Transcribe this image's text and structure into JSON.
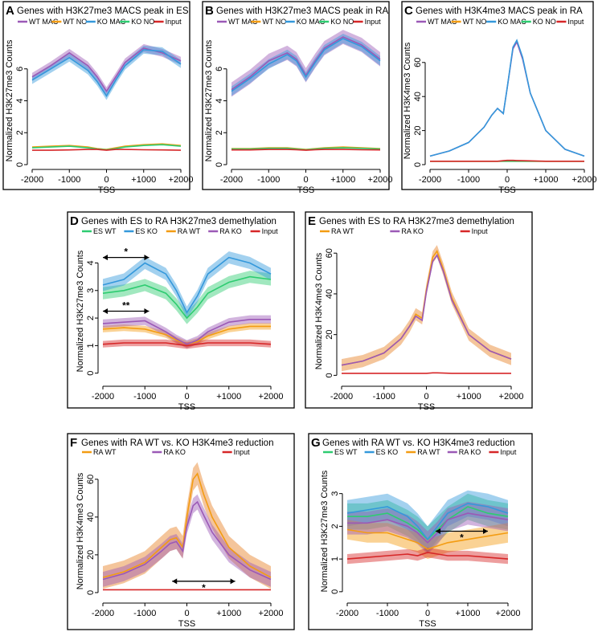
{
  "figure_title": "Multi-panel H3K27me3 / H3K4me3 TSS profiles",
  "colors": {
    "wt_mac": "#9b59b6",
    "wt_no": "#f39c12",
    "ko_mac": "#3498db",
    "ko_no": "#2ecc71",
    "input": "#d62728",
    "es_wt": "#2ecc71",
    "es_ko": "#3498db",
    "ra_wt": "#f39c12",
    "ra_ko": "#9b59b6",
    "orange_band": "#e67e22"
  },
  "chart_data": [
    {
      "id": "A",
      "type": "line",
      "title": "Genes with H3K27me3 MACS peak in ES",
      "xlabel": "TSS",
      "ylabel": "Normalized H3K27me3 Counts",
      "xlim": [
        -2000,
        2000
      ],
      "ylim": [
        0,
        8
      ],
      "xticks": [
        "-2000",
        "-1000",
        "0",
        "+1000",
        "+2000"
      ],
      "yticks": [
        "0",
        "2",
        "4",
        "6"
      ],
      "ytick_values": [
        0,
        2,
        4,
        6
      ],
      "x": [
        -2000,
        -1500,
        -1000,
        -500,
        -250,
        0,
        250,
        500,
        1000,
        1500,
        2000
      ],
      "series": [
        {
          "name": "WT MAC",
          "color_key": "wt_mac",
          "band": 0.25,
          "values": [
            5.5,
            6.2,
            7.0,
            6.2,
            5.5,
            4.6,
            5.5,
            6.4,
            7.3,
            7.0,
            6.5
          ]
        },
        {
          "name": "WT NO",
          "color_key": "wt_no",
          "band": 0,
          "values": [
            1.1,
            1.15,
            1.2,
            1.1,
            1.0,
            0.95,
            1.05,
            1.15,
            1.25,
            1.3,
            1.2
          ]
        },
        {
          "name": "KO MAC",
          "color_key": "ko_mac",
          "band": 0.25,
          "values": [
            5.3,
            6.0,
            6.7,
            5.9,
            5.2,
            4.3,
            5.3,
            6.2,
            7.2,
            7.1,
            6.3
          ]
        },
        {
          "name": "KO NO",
          "color_key": "ko_no",
          "band": 0,
          "values": [
            1.05,
            1.1,
            1.15,
            1.05,
            0.98,
            0.93,
            1.0,
            1.1,
            1.2,
            1.25,
            1.15
          ]
        },
        {
          "name": "Input",
          "color_key": "input",
          "band": 0,
          "values": [
            0.9,
            0.9,
            0.92,
            0.95,
            0.95,
            0.9,
            0.95,
            0.95,
            0.93,
            0.92,
            0.9
          ]
        }
      ]
    },
    {
      "id": "B",
      "type": "line",
      "title": "Genes with H3K27me3 MACS peak in RA",
      "xlabel": "TSS",
      "ylabel": "Normalized H3K27me3 Counts",
      "xlim": [
        -2000,
        2000
      ],
      "ylim": [
        0,
        8
      ],
      "xticks": [
        "-2000",
        "-1000",
        "0",
        "+1000",
        "+2000"
      ],
      "yticks": [
        "0",
        "2",
        "4",
        "6"
      ],
      "ytick_values": [
        0,
        2,
        4,
        6
      ],
      "x": [
        -2000,
        -1500,
        -1000,
        -500,
        -250,
        0,
        250,
        500,
        1000,
        1500,
        2000
      ],
      "series": [
        {
          "name": "WT MAC",
          "color_key": "wt_mac",
          "band": 0.45,
          "values": [
            4.7,
            5.5,
            6.5,
            7.0,
            6.6,
            5.6,
            6.5,
            7.3,
            8.0,
            7.5,
            6.6
          ]
        },
        {
          "name": "WT NO",
          "color_key": "wt_no",
          "band": 0,
          "values": [
            1.0,
            1.0,
            1.05,
            1.05,
            1.0,
            0.95,
            1.0,
            1.05,
            1.1,
            1.05,
            1.0
          ]
        },
        {
          "name": "KO MAC",
          "color_key": "ko_mac",
          "band": 0.3,
          "values": [
            4.6,
            5.4,
            6.3,
            6.9,
            6.5,
            5.5,
            6.4,
            7.2,
            7.9,
            7.4,
            6.5
          ]
        },
        {
          "name": "KO NO",
          "color_key": "ko_no",
          "band": 0,
          "values": [
            0.98,
            0.98,
            1.02,
            1.02,
            0.98,
            0.93,
            0.98,
            1.02,
            1.05,
            1.02,
            0.98
          ]
        },
        {
          "name": "Input",
          "color_key": "input",
          "band": 0,
          "values": [
            0.92,
            0.92,
            0.95,
            0.95,
            0.93,
            0.9,
            0.93,
            0.95,
            0.95,
            0.93,
            0.92
          ]
        }
      ]
    },
    {
      "id": "C",
      "type": "line",
      "title": "Genes with H3K4me3 MACS peak in RA",
      "xlabel": "TSS",
      "ylabel": "Normalized H3K4me3 Counts",
      "xlim": [
        -2000,
        2000
      ],
      "ylim": [
        0,
        75
      ],
      "xticks": [
        "-2000",
        "-1000",
        "0",
        "+1000",
        "+2000"
      ],
      "yticks": [
        "0",
        "20",
        "40",
        "60"
      ],
      "ytick_values": [
        0,
        20,
        40,
        60
      ],
      "x": [
        -2000,
        -1500,
        -1000,
        -600,
        -400,
        -250,
        -100,
        0,
        150,
        250,
        400,
        600,
        1000,
        1500,
        2000
      ],
      "series": [
        {
          "name": "WT MAC",
          "color_key": "wt_mac",
          "band": 0,
          "values": [
            5,
            8,
            13,
            22,
            29,
            33,
            30,
            45,
            68,
            72,
            62,
            42,
            20,
            9,
            5
          ]
        },
        {
          "name": "WT NO",
          "color_key": "wt_no",
          "band": 0,
          "values": [
            2,
            2,
            2,
            2,
            2,
            2,
            2,
            2,
            2,
            2,
            2,
            2,
            2,
            2,
            2
          ]
        },
        {
          "name": "KO MAC",
          "color_key": "ko_mac",
          "band": 0,
          "values": [
            5,
            8,
            13,
            22,
            29,
            33,
            30,
            45,
            69,
            73,
            63,
            42,
            20,
            9,
            5
          ]
        },
        {
          "name": "KO NO",
          "color_key": "ko_no",
          "band": 0,
          "values": [
            2,
            2,
            2,
            2,
            2,
            2,
            2,
            2,
            2,
            2,
            2,
            2,
            2,
            2,
            2
          ]
        },
        {
          "name": "Input",
          "color_key": "input",
          "band": 0,
          "values": [
            2,
            2,
            2,
            2,
            2,
            2,
            2.3,
            2.5,
            2.5,
            2.4,
            2.3,
            2.2,
            2,
            2,
            2
          ]
        }
      ]
    },
    {
      "id": "D",
      "type": "line",
      "title": "Genes with ES to RA H3K27me3 demethylation",
      "xlabel": "TSS",
      "ylabel": "Normalized H3K27me3 Counts",
      "xlim": [
        -2000,
        2000
      ],
      "ylim": [
        -0.3,
        4.8
      ],
      "xticks": [
        "-2000",
        "-1000",
        "0",
        "+1000",
        "+2000"
      ],
      "yticks": [
        "0",
        "1",
        "2",
        "3",
        "4"
      ],
      "ytick_values": [
        0,
        1,
        2,
        3,
        4
      ],
      "x": [
        -2000,
        -1500,
        -1000,
        -500,
        -250,
        0,
        250,
        500,
        1000,
        1500,
        2000
      ],
      "series": [
        {
          "name": "ES WT",
          "color_key": "es_wt",
          "band": 0.22,
          "values": [
            2.9,
            3.0,
            3.2,
            2.9,
            2.5,
            2.0,
            2.4,
            2.9,
            3.3,
            3.5,
            3.4
          ]
        },
        {
          "name": "ES KO",
          "color_key": "es_ko",
          "band": 0.22,
          "values": [
            3.2,
            3.4,
            4.0,
            3.6,
            3.0,
            2.2,
            2.8,
            3.6,
            4.2,
            4.0,
            3.6
          ]
        },
        {
          "name": "RA WT",
          "color_key": "ra_wt",
          "band": 0.12,
          "values": [
            1.6,
            1.65,
            1.6,
            1.4,
            1.2,
            1.05,
            1.15,
            1.35,
            1.6,
            1.7,
            1.7
          ]
        },
        {
          "name": "RA KO",
          "color_key": "ra_ko",
          "band": 0.15,
          "values": [
            1.8,
            1.85,
            1.9,
            1.5,
            1.25,
            1.05,
            1.2,
            1.5,
            1.85,
            1.95,
            1.95
          ]
        },
        {
          "name": "Input",
          "color_key": "input",
          "band": 0.12,
          "values": [
            1.05,
            1.1,
            1.1,
            1.1,
            1.05,
            1.0,
            1.05,
            1.1,
            1.1,
            1.1,
            1.05
          ]
        }
      ],
      "annotations": [
        {
          "text": "*",
          "x_from": -2000,
          "x_to": -900,
          "y": 4.2
        },
        {
          "text": "**",
          "x_from": -2000,
          "x_to": -900,
          "y": 2.25
        }
      ]
    },
    {
      "id": "E",
      "type": "line",
      "title": "Genes with ES to RA H3K27me3 demethylation",
      "xlabel": "TSS",
      "ylabel": "Normalized H3K4me3 Counts",
      "xlim": [
        -2000,
        2000
      ],
      "ylim": [
        -3,
        66
      ],
      "xticks": [
        "-2000",
        "-1000",
        "0",
        "+1000",
        "+2000"
      ],
      "yticks": [
        "0",
        "20",
        "40",
        "60"
      ],
      "ytick_values": [
        0,
        20,
        40,
        60
      ],
      "x": [
        -2000,
        -1500,
        -1000,
        -600,
        -400,
        -250,
        -100,
        0,
        150,
        250,
        400,
        600,
        1000,
        1500,
        2000
      ],
      "series": [
        {
          "name": "RA WT",
          "color_key": "ra_wt",
          "band": 3,
          "values": [
            5,
            7,
            11,
            18,
            24,
            30,
            28,
            42,
            58,
            61,
            52,
            38,
            20,
            12,
            8
          ]
        },
        {
          "name": "RA KO",
          "color_key": "ra_ko",
          "band": 0,
          "values": [
            5,
            7,
            11,
            18,
            24,
            29,
            27,
            41,
            56,
            59,
            51,
            37,
            20,
            12,
            8
          ]
        },
        {
          "name": "Input",
          "color_key": "input",
          "band": 0,
          "values": [
            1,
            1,
            1,
            1,
            1,
            1,
            1,
            1,
            1.2,
            1.2,
            1.1,
            1,
            1,
            1,
            1
          ]
        }
      ]
    },
    {
      "id": "F",
      "type": "line",
      "title": "Genes with RA WT vs. KO H3K4me3 reduction",
      "xlabel": "TSS",
      "ylabel": "Normalized H3K4me3 Counts",
      "xlim": [
        -2000,
        2000
      ],
      "ylim": [
        -3,
        68
      ],
      "xticks": [
        "-2000",
        "-1000",
        "0",
        "+1000",
        "+2000"
      ],
      "yticks": [
        "0",
        "20",
        "40",
        "60"
      ],
      "ytick_values": [
        0,
        20,
        40,
        60
      ],
      "x": [
        -2000,
        -1500,
        -1000,
        -600,
        -400,
        -250,
        -100,
        0,
        150,
        250,
        400,
        600,
        1000,
        1500,
        2000
      ],
      "series": [
        {
          "name": "RA WT",
          "color_key": "ra_wt",
          "band": 6,
          "values": [
            8,
            11,
            16,
            24,
            28,
            29,
            24,
            40,
            60,
            63,
            52,
            40,
            24,
            14,
            8
          ]
        },
        {
          "name": "RA KO",
          "color_key": "ra_ko",
          "band": 4,
          "values": [
            7,
            10,
            15,
            22,
            26,
            27,
            22,
            35,
            46,
            48,
            41,
            32,
            20,
            12,
            7
          ]
        },
        {
          "name": "Input",
          "color_key": "input",
          "band": 0,
          "values": [
            1.5,
            1.5,
            1.5,
            1.5,
            1.5,
            1.5,
            1.5,
            1.5,
            1.5,
            1.5,
            1.5,
            1.5,
            1.5,
            1.5,
            1.5
          ]
        }
      ],
      "annotations": [
        {
          "text": "*",
          "x_from": -350,
          "x_to": 1150,
          "y": 6
        }
      ]
    },
    {
      "id": "G",
      "type": "line",
      "title": "Genes with RA WT vs. KO H3K4me3 reduction",
      "xlabel": "TSS",
      "ylabel": "Normalized H3K27me3 Counts",
      "xlim": [
        -2000,
        2000
      ],
      "ylim": [
        -0.2,
        3.9
      ],
      "xticks": [
        "-2000",
        "-1000",
        "0",
        "+1000",
        "+2000"
      ],
      "yticks": [
        "0",
        "1",
        "2",
        "3"
      ],
      "ytick_values": [
        0,
        1,
        2,
        3
      ],
      "x": [
        -2000,
        -1500,
        -1000,
        -500,
        -250,
        0,
        250,
        500,
        1000,
        1500,
        2000
      ],
      "series": [
        {
          "name": "ES WT",
          "color_key": "es_wt",
          "band": 0.4,
          "values": [
            2.3,
            2.3,
            2.4,
            2.1,
            1.9,
            1.6,
            1.9,
            2.2,
            2.6,
            2.4,
            2.3
          ]
        },
        {
          "name": "ES KO",
          "color_key": "es_ko",
          "band": 0.4,
          "values": [
            2.4,
            2.5,
            2.6,
            2.3,
            2.0,
            1.6,
            2.0,
            2.4,
            2.7,
            2.6,
            2.4
          ]
        },
        {
          "name": "RA WT",
          "color_key": "ra_wt",
          "band": 0.3,
          "values": [
            1.9,
            1.8,
            1.8,
            1.6,
            1.5,
            1.3,
            1.4,
            1.5,
            1.6,
            1.7,
            1.8
          ]
        },
        {
          "name": "RA KO",
          "color_key": "ra_ko",
          "band": 0.35,
          "values": [
            2.1,
            2.1,
            2.2,
            2.0,
            1.8,
            1.5,
            1.8,
            2.2,
            2.4,
            2.3,
            2.2
          ]
        },
        {
          "name": "Input",
          "color_key": "input",
          "band": 0.15,
          "values": [
            1.0,
            1.05,
            1.1,
            1.15,
            1.1,
            1.2,
            1.15,
            1.1,
            1.1,
            1.05,
            1.0
          ]
        }
      ],
      "annotations": [
        {
          "text": "*",
          "x_from": 200,
          "x_to": 1500,
          "y": 1.85
        }
      ]
    }
  ]
}
